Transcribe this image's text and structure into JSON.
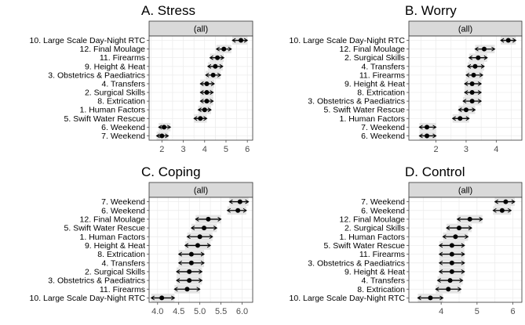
{
  "chart_data": [
    {
      "type": "scatter",
      "title": "A. Stress",
      "strip_label": "(all)",
      "xlim": [
        1.4,
        6.25
      ],
      "x_ticks": [
        2,
        3,
        4,
        5,
        6
      ],
      "grid": true,
      "items": [
        {
          "label": "10. Large Scale Day-Night RTC",
          "estimate": 5.7,
          "low": 5.3,
          "high": 6.0
        },
        {
          "label": "12. Final Moulage",
          "estimate": 4.9,
          "low": 4.55,
          "high": 5.25
        },
        {
          "label": "11. Firearms",
          "estimate": 4.6,
          "low": 4.25,
          "high": 4.9
        },
        {
          "label": "9. Height & Heat",
          "estimate": 4.5,
          "low": 4.15,
          "high": 4.85
        },
        {
          "label": "3. Obstetrics & Paediatrics",
          "estimate": 4.4,
          "low": 4.05,
          "high": 4.75
        },
        {
          "label": "4. Transfers",
          "estimate": 4.1,
          "low": 3.8,
          "high": 4.45
        },
        {
          "label": "2. Surgical Skills",
          "estimate": 4.1,
          "low": 3.8,
          "high": 4.4
        },
        {
          "label": "8. Extrication",
          "estimate": 4.1,
          "low": 3.8,
          "high": 4.4
        },
        {
          "label": "1. Human Factors",
          "estimate": 4.0,
          "low": 3.7,
          "high": 4.3
        },
        {
          "label": "5. Swift Water Rescue",
          "estimate": 3.8,
          "low": 3.5,
          "high": 4.1
        },
        {
          "label": "6. Weekend",
          "estimate": 2.1,
          "low": 1.85,
          "high": 2.4
        },
        {
          "label": "7. Weekend",
          "estimate": 2.0,
          "low": 1.75,
          "high": 2.3
        }
      ]
    },
    {
      "type": "scatter",
      "title": "B. Worry",
      "strip_label": "(all)",
      "xlim": [
        1.1,
        4.85
      ],
      "x_ticks": [
        2,
        3,
        4
      ],
      "grid": true,
      "items": [
        {
          "label": "10. Large Scale Day-Night RTC",
          "estimate": 4.4,
          "low": 4.15,
          "high": 4.65
        },
        {
          "label": "12. Final Moulage",
          "estimate": 3.6,
          "low": 3.3,
          "high": 3.95
        },
        {
          "label": "2. Surgical Skills",
          "estimate": 3.4,
          "low": 3.1,
          "high": 3.7
        },
        {
          "label": "4. Transfers",
          "estimate": 3.3,
          "low": 3.05,
          "high": 3.6
        },
        {
          "label": "11. Firearms",
          "estimate": 3.25,
          "low": 3.0,
          "high": 3.55
        },
        {
          "label": "9. Height & Heat",
          "estimate": 3.2,
          "low": 2.95,
          "high": 3.5
        },
        {
          "label": "8. Extrication",
          "estimate": 3.2,
          "low": 2.95,
          "high": 3.5
        },
        {
          "label": "3. Obstetrics & Paediatrics",
          "estimate": 3.2,
          "low": 2.9,
          "high": 3.5
        },
        {
          "label": "5. Swift Water Rescue",
          "estimate": 3.0,
          "low": 2.75,
          "high": 3.3
        },
        {
          "label": "1. Human Factors",
          "estimate": 2.8,
          "low": 2.55,
          "high": 3.1
        },
        {
          "label": "7. Weekend",
          "estimate": 1.7,
          "low": 1.45,
          "high": 2.0
        },
        {
          "label": "6. Weekend",
          "estimate": 1.7,
          "low": 1.45,
          "high": 2.0
        }
      ]
    },
    {
      "type": "scatter",
      "title": "C. Coping",
      "strip_label": "(all)",
      "xlim": [
        3.8,
        6.25
      ],
      "x_ticks": [
        4.0,
        4.5,
        5.0,
        5.5,
        6.0
      ],
      "x_tick_labels": [
        "4.0",
        "4.5",
        "5.0",
        "5.5",
        "6.0"
      ],
      "grid": true,
      "items": [
        {
          "label": "7. Weekend",
          "estimate": 5.95,
          "low": 5.7,
          "high": 6.15
        },
        {
          "label": "6. Weekend",
          "estimate": 5.9,
          "low": 5.65,
          "high": 6.1
        },
        {
          "label": "12. Final Moulage",
          "estimate": 5.2,
          "low": 4.9,
          "high": 5.5
        },
        {
          "label": "5. Swift Water Rescue",
          "estimate": 5.1,
          "low": 4.8,
          "high": 5.4
        },
        {
          "label": "1. Human Factors",
          "estimate": 5.0,
          "low": 4.7,
          "high": 5.3
        },
        {
          "label": "9. Height & Heat",
          "estimate": 4.95,
          "low": 4.65,
          "high": 5.25
        },
        {
          "label": "8. Extrication",
          "estimate": 4.8,
          "low": 4.5,
          "high": 5.1
        },
        {
          "label": "4. Transfers",
          "estimate": 4.8,
          "low": 4.5,
          "high": 5.1
        },
        {
          "label": "2. Surgical Skills",
          "estimate": 4.75,
          "low": 4.45,
          "high": 5.05
        },
        {
          "label": "3. Obstetrics & Paediatrics",
          "estimate": 4.75,
          "low": 4.45,
          "high": 5.05
        },
        {
          "label": "11. Firearms",
          "estimate": 4.7,
          "low": 4.4,
          "high": 5.0
        },
        {
          "label": "10. Large Scale Day-Night RTC",
          "estimate": 4.1,
          "low": 3.85,
          "high": 4.4
        }
      ]
    },
    {
      "type": "scatter",
      "title": "D. Control",
      "strip_label": "(all)",
      "xlim": [
        3.1,
        6.25
      ],
      "x_ticks": [
        4,
        5,
        6
      ],
      "grid": true,
      "items": [
        {
          "label": "7. Weekend",
          "estimate": 5.8,
          "low": 5.5,
          "high": 6.05
        },
        {
          "label": "6. Weekend",
          "estimate": 5.7,
          "low": 5.45,
          "high": 5.95
        },
        {
          "label": "12. Final Moulage",
          "estimate": 4.8,
          "low": 4.45,
          "high": 5.15
        },
        {
          "label": "2. Surgical Skills",
          "estimate": 4.5,
          "low": 4.15,
          "high": 4.85
        },
        {
          "label": "1. Human Factors",
          "estimate": 4.4,
          "low": 4.05,
          "high": 4.75
        },
        {
          "label": "5. Swift Water Rescue",
          "estimate": 4.3,
          "low": 3.95,
          "high": 4.65
        },
        {
          "label": "11. Firearms",
          "estimate": 4.3,
          "low": 3.95,
          "high": 4.65
        },
        {
          "label": "3. Obstetrics & Paediatrics",
          "estimate": 4.3,
          "low": 3.95,
          "high": 4.65
        },
        {
          "label": "9. Height & Heat",
          "estimate": 4.3,
          "low": 3.95,
          "high": 4.65
        },
        {
          "label": "4. Transfers",
          "estimate": 4.25,
          "low": 3.9,
          "high": 4.6
        },
        {
          "label": "8. Extrication",
          "estimate": 4.2,
          "low": 3.85,
          "high": 4.55
        },
        {
          "label": "10. Large Scale Day-Night RTC",
          "estimate": 3.7,
          "low": 3.35,
          "high": 4.05
        }
      ]
    }
  ],
  "colors": {
    "strip_fill": "#d9d9d9",
    "panel_border": "#333333",
    "gridline": "#ebebeb",
    "ci_band": "#e0e0e0",
    "point": "#000000",
    "text": "#000000",
    "tick_text": "#4d4d4d"
  }
}
